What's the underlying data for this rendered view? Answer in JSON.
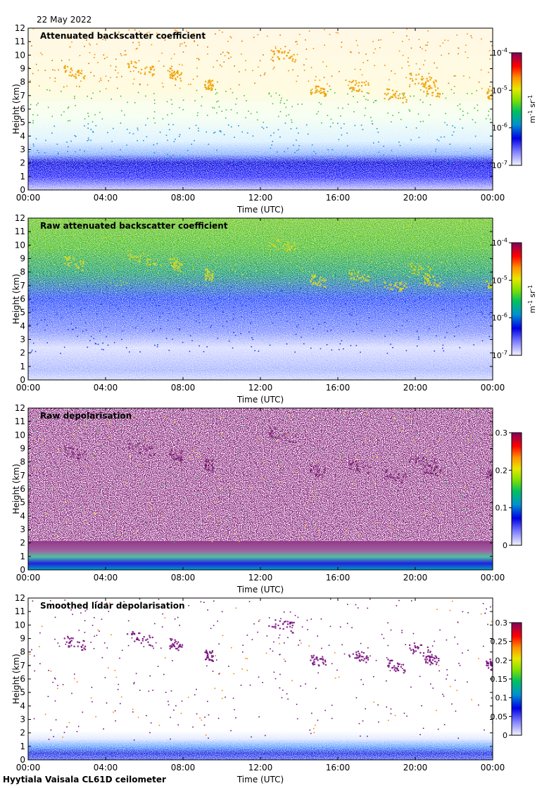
{
  "header": {
    "date": "22 May 2022"
  },
  "footer": {
    "site": "Hyytiala Vaisala CL61D ceilometer"
  },
  "chart_data": [
    {
      "type": "heatmap",
      "title": "Attenuated backscatter coefficient",
      "xlabel": "Time (UTC)",
      "ylabel": "Height (km)",
      "xticks": [
        "00:00",
        "04:00",
        "08:00",
        "12:00",
        "16:00",
        "20:00",
        "00:00"
      ],
      "yticks": [
        0,
        1,
        2,
        3,
        4,
        5,
        6,
        7,
        8,
        9,
        10,
        11,
        12
      ],
      "ylim": [
        0,
        12
      ],
      "colorbar": {
        "scale": "log",
        "range": [
          1e-07,
          0.0001
        ],
        "ticks": [
          "10-7",
          "10-6",
          "10-5",
          "10-4"
        ],
        "unit": "m-1 sr-1"
      }
    },
    {
      "type": "heatmap",
      "title": "Raw attenuated backscatter coefficient",
      "xlabel": "Time (UTC)",
      "ylabel": "Height (km)",
      "xticks": [
        "00:00",
        "04:00",
        "08:00",
        "12:00",
        "16:00",
        "20:00",
        "00:00"
      ],
      "yticks": [
        0,
        1,
        2,
        3,
        4,
        5,
        6,
        7,
        8,
        9,
        10,
        11,
        12
      ],
      "ylim": [
        0,
        12
      ],
      "colorbar": {
        "scale": "log",
        "range": [
          1e-07,
          0.0001
        ],
        "ticks": [
          "10-7",
          "10-6",
          "10-5",
          "10-4"
        ],
        "unit": "m-1 sr-1"
      }
    },
    {
      "type": "heatmap",
      "title": "Raw depolarisation",
      "xlabel": "Time (UTC)",
      "ylabel": "Height (km)",
      "xticks": [
        "00:00",
        "04:00",
        "08:00",
        "12:00",
        "16:00",
        "20:00",
        "00:00"
      ],
      "yticks": [
        0,
        1,
        2,
        3,
        4,
        5,
        6,
        7,
        8,
        9,
        10,
        11,
        12
      ],
      "ylim": [
        0,
        12
      ],
      "colorbar": {
        "scale": "linear",
        "range": [
          0,
          0.3
        ],
        "ticks": [
          "0",
          "0.1",
          "0.2",
          "0.3"
        ],
        "unit": ""
      }
    },
    {
      "type": "heatmap",
      "title": "Smoothed lidar depolarisation",
      "xlabel": "Time (UTC)",
      "ylabel": "Height (km)",
      "xticks": [
        "00:00",
        "04:00",
        "08:00",
        "12:00",
        "16:00",
        "20:00",
        "00:00"
      ],
      "yticks": [
        0,
        1,
        2,
        3,
        4,
        5,
        6,
        7,
        8,
        9,
        10,
        11,
        12
      ],
      "ylim": [
        0,
        12
      ],
      "colorbar": {
        "scale": "linear",
        "range": [
          0,
          0.3
        ],
        "ticks": [
          "0",
          "0.05",
          "0.1",
          "0.15",
          "0.2",
          "0.25",
          "0.3"
        ],
        "unit": ""
      }
    }
  ]
}
